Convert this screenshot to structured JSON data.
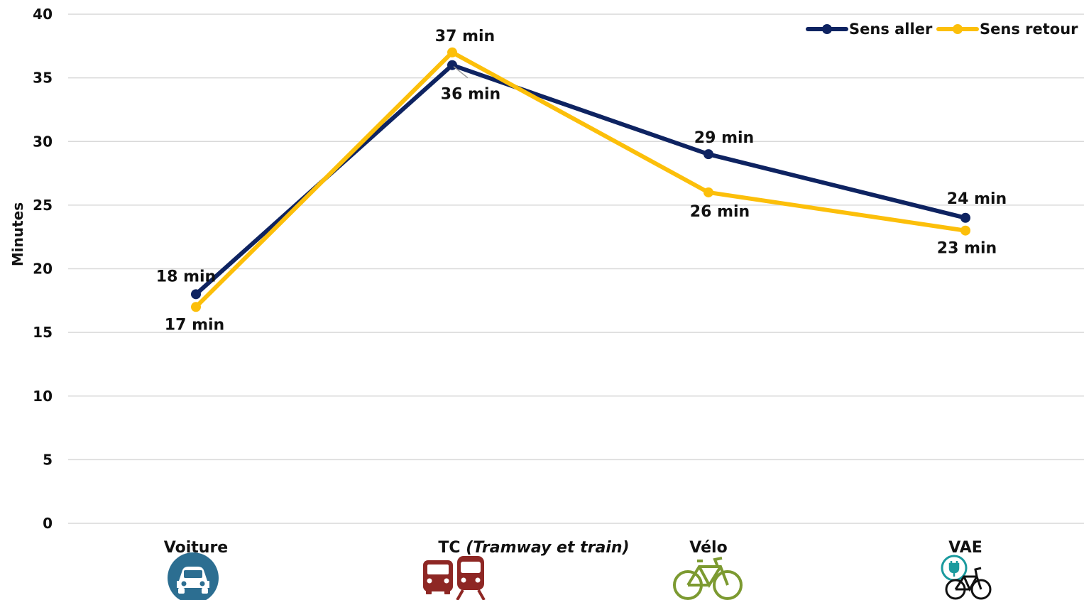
{
  "chart_data": {
    "type": "line",
    "ylabel": "Minutes",
    "ylim": [
      0,
      40
    ],
    "yticks": [
      "0",
      "5",
      "10",
      "15",
      "20",
      "25",
      "30",
      "35",
      "40"
    ],
    "grid": true,
    "legend_position": "top-right",
    "categories": [
      {
        "main": "Voiture",
        "sub": ""
      },
      {
        "main": "TC ",
        "sub": "(Tramway et train)"
      },
      {
        "main": "Vélo",
        "sub": ""
      },
      {
        "main": "VAE",
        "sub": ""
      }
    ],
    "category_icons": [
      "car-icon",
      "bus-train-icon",
      "bicycle-icon",
      "electric-bicycle-icon"
    ],
    "series": [
      {
        "name": "Sens aller",
        "color": "#0e2361",
        "values": [
          18,
          36,
          29,
          24
        ],
        "labels": [
          "18 min",
          "36 min",
          "29 min",
          "24 min"
        ]
      },
      {
        "name": "Sens retour",
        "color": "#fcbf0a",
        "values": [
          17,
          37,
          26,
          23
        ],
        "labels": [
          "17 min",
          "37 min",
          "26 min",
          "23 min"
        ]
      }
    ]
  },
  "colors": {
    "grid": "#d9d9d9",
    "car": "#2c6e91",
    "transit": "#8e2724",
    "bike": "#7c9a31",
    "ebike": "#1a9a9e"
  }
}
